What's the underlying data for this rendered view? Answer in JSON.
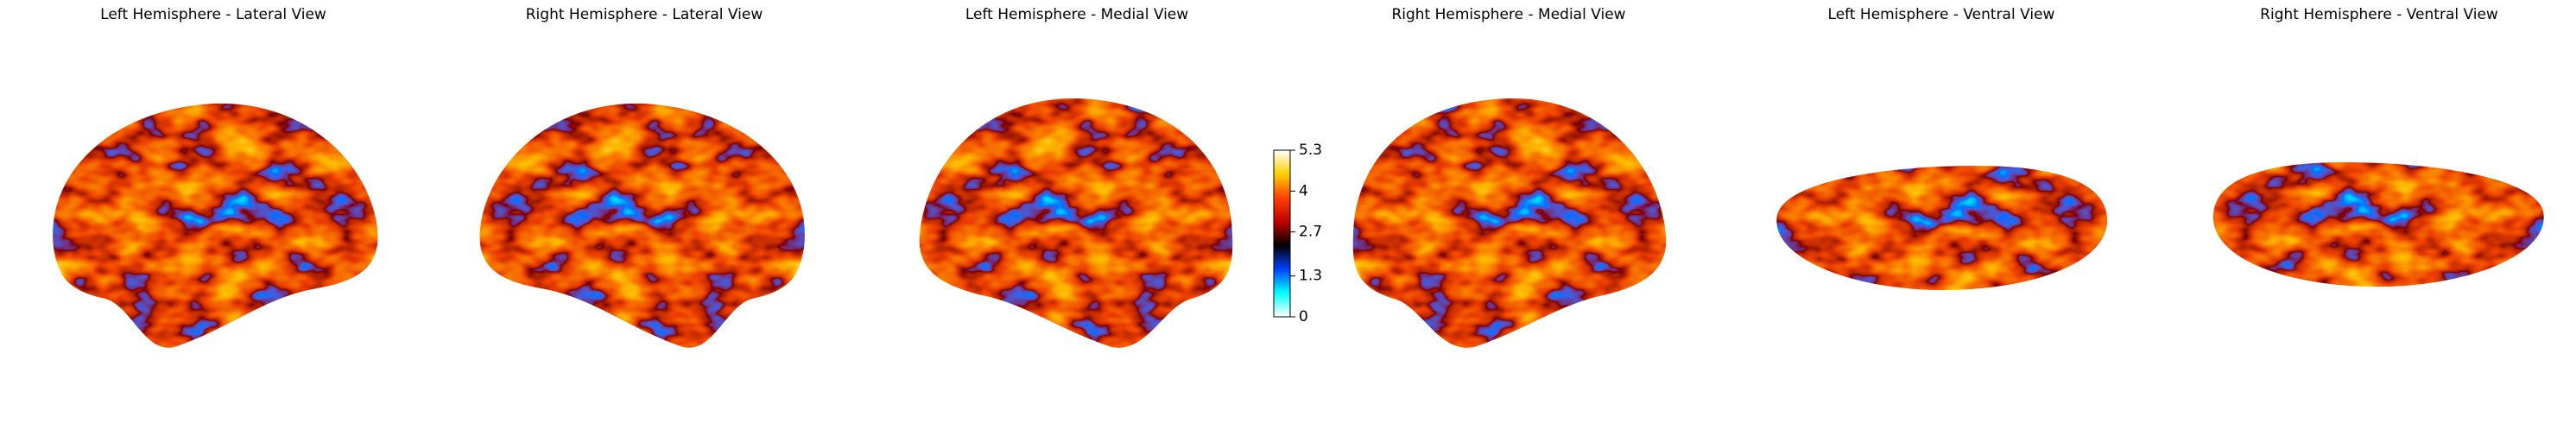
{
  "chart_data": {
    "type": "surface",
    "panels": [
      {
        "title": "Left Hemisphere - Lateral View"
      },
      {
        "title": "Right Hemisphere - Lateral View"
      },
      {
        "title": "Left Hemisphere - Medial View"
      },
      {
        "title": "Right Hemisphere - Medial View"
      },
      {
        "title": "Left Hemisphere - Ventral View"
      },
      {
        "title": "Right Hemisphere - Ventral View"
      }
    ],
    "colorbar": {
      "ylim": [
        0,
        5.3
      ],
      "yticks": [
        0,
        1.3,
        2.7,
        4,
        5.3
      ],
      "colormap": [
        "#ffffff",
        "#00ffff",
        "#0040ff",
        "#000000",
        "#c00000",
        "#ff4000",
        "#ffd000",
        "#ffffff"
      ]
    }
  }
}
